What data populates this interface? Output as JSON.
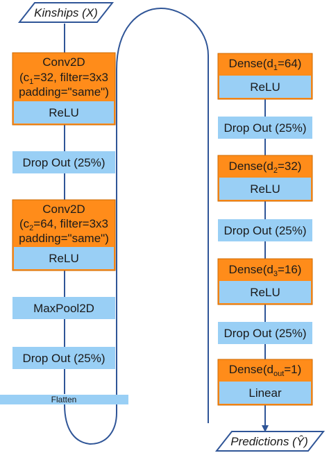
{
  "input": {
    "label": "Kinships (X)"
  },
  "output": {
    "label": "Predictions (Ŷ)"
  },
  "conv1": {
    "title": "Conv2D",
    "param_prefix": "(c",
    "param_sub": "1",
    "param_rest": "=32, filter=3x3",
    "padding": "padding=\"same\")",
    "activation": "ReLU"
  },
  "dropout1": {
    "label": "Drop Out (25%)"
  },
  "conv2": {
    "title": "Conv2D",
    "param_prefix": "(c",
    "param_sub": "2",
    "param_rest": "=64, filter=3x3",
    "padding": "padding=\"same\")",
    "activation": "ReLU"
  },
  "maxpool": {
    "label": "MaxPool2D"
  },
  "dropout2": {
    "label": "Drop Out (25%)"
  },
  "flatten": {
    "label": "Flatten"
  },
  "dense1": {
    "prefix": "Dense(d",
    "sub": "1",
    "rest": "=64)",
    "activation": "ReLU"
  },
  "dropout3": {
    "label": "Drop Out (25%)"
  },
  "dense2": {
    "prefix": "Dense(d",
    "sub": "2",
    "rest": "=32)",
    "activation": "ReLU"
  },
  "dropout4": {
    "label": "Drop Out (25%)"
  },
  "dense3": {
    "prefix": "Dense(d",
    "sub": "3",
    "rest": "=16)",
    "activation": "ReLU"
  },
  "dropout5": {
    "label": "Drop Out (25%)"
  },
  "dense_out": {
    "prefix": "Dense(d",
    "sub": "out",
    "rest": "=1)",
    "activation": "Linear"
  },
  "colors": {
    "orange": "#ff8c1a",
    "orange_border": "#cc6a00",
    "blue": "#99cff5",
    "line": "#2f5597"
  }
}
